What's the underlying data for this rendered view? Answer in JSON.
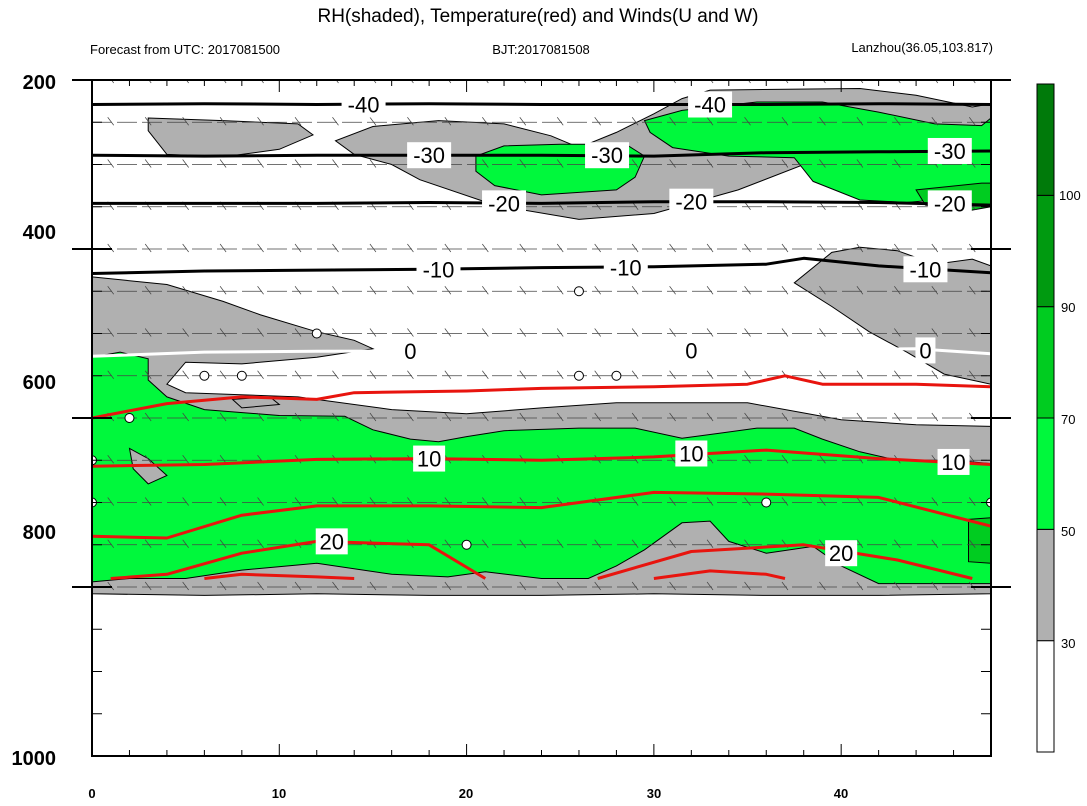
{
  "header": {
    "title": "RH(shaded), Temperature(red) and Winds(U and W)",
    "left_subtitle": "Forecast from UTC: 2017081500",
    "center_subtitle": "BJT:2017081508",
    "right_subtitle": "Lanzhou(36.05,103.817)"
  },
  "chart_data": {
    "type": "heatmap",
    "title": "RH(shaded), Temperature(red) and Winds(U and W)",
    "x_ticks": [
      "0",
      "10",
      "20",
      "30",
      "40"
    ],
    "x_range": [
      0,
      48
    ],
    "y_ticks": [
      "200",
      "400",
      "600",
      "800",
      "1000"
    ],
    "y_range": [
      200,
      1000
    ],
    "y_inverted": true,
    "colorbar": {
      "labels": [
        "30",
        "50",
        "70",
        "90",
        "100"
      ],
      "levels": [
        {
          "min": 0,
          "max": 30,
          "color": "#ffffff"
        },
        {
          "min": 30,
          "max": 50,
          "color": "#b0b0b0"
        },
        {
          "min": 50,
          "max": 70,
          "color": "#00f83c"
        },
        {
          "min": 70,
          "max": 90,
          "color": "#00cc20"
        },
        {
          "min": 90,
          "max": 100,
          "color": "#009a10"
        },
        {
          "min": 100,
          "max": 110,
          "color": "#007a0a"
        }
      ]
    },
    "rh_regions": [
      {
        "level": 30,
        "points": [
          [
            3,
            245
          ],
          [
            7,
            248
          ],
          [
            11,
            252
          ],
          [
            11.8,
            265
          ],
          [
            10,
            282
          ],
          [
            7,
            291
          ],
          [
            4,
            288
          ],
          [
            3,
            260
          ]
        ]
      },
      {
        "level": 30,
        "points": [
          [
            15,
            255
          ],
          [
            18.5,
            248
          ],
          [
            22,
            252
          ],
          [
            24.5,
            266
          ],
          [
            26,
            280
          ],
          [
            28,
            262
          ],
          [
            30,
            240
          ],
          [
            31.5,
            222
          ],
          [
            33,
            212
          ],
          [
            41,
            210
          ],
          [
            44,
            218
          ],
          [
            47,
            232
          ],
          [
            48,
            228
          ],
          [
            48,
            322
          ],
          [
            47,
            325
          ],
          [
            42,
            315
          ],
          [
            38,
            300
          ],
          [
            34.5,
            330
          ],
          [
            30,
            358
          ],
          [
            26,
            365
          ],
          [
            21.5,
            348
          ],
          [
            17.5,
            318
          ],
          [
            16,
            300
          ],
          [
            14,
            288
          ],
          [
            13,
            272
          ]
        ]
      },
      {
        "level": 50,
        "points": [
          [
            20.5,
            290
          ],
          [
            22,
            278
          ],
          [
            25,
            276
          ],
          [
            28.5,
            276
          ],
          [
            29.5,
            290
          ],
          [
            29,
            315
          ],
          [
            28,
            330
          ],
          [
            24,
            336
          ],
          [
            21.5,
            325
          ],
          [
            20.5,
            308
          ]
        ]
      },
      {
        "level": 50,
        "points": [
          [
            29.5,
            248
          ],
          [
            31.5,
            236
          ],
          [
            35.5,
            226
          ],
          [
            39,
            226
          ],
          [
            42,
            238
          ],
          [
            45,
            252
          ],
          [
            47.5,
            254
          ],
          [
            48,
            245
          ],
          [
            48,
            330
          ],
          [
            46,
            340
          ],
          [
            43.5,
            345
          ],
          [
            41,
            342
          ],
          [
            38.5,
            320
          ],
          [
            37.5,
            292
          ],
          [
            34,
            290
          ],
          [
            31,
            280
          ],
          [
            29.8,
            262
          ]
        ]
      },
      {
        "level": 70,
        "points": [
          [
            44,
            330
          ],
          [
            47.5,
            322
          ],
          [
            48,
            322
          ],
          [
            48,
            350
          ],
          [
            46.5,
            356
          ],
          [
            44.5,
            348
          ]
        ]
      },
      {
        "level": 30,
        "points": [
          [
            0,
            433
          ],
          [
            4,
            442
          ],
          [
            7,
            462
          ],
          [
            9,
            478
          ],
          [
            12,
            498
          ],
          [
            14,
            508
          ],
          [
            15,
            518
          ],
          [
            12,
            528
          ],
          [
            8,
            536
          ],
          [
            5,
            534
          ],
          [
            4,
            560
          ],
          [
            5,
            570
          ],
          [
            11,
            575
          ],
          [
            16,
            590
          ],
          [
            20,
            595
          ],
          [
            24,
            588
          ],
          [
            28,
            582
          ],
          [
            35,
            582
          ],
          [
            40,
            602
          ],
          [
            44,
            608
          ],
          [
            48,
            610
          ],
          [
            48,
            808
          ],
          [
            42,
            810
          ],
          [
            36,
            810
          ],
          [
            30,
            808
          ],
          [
            24,
            810
          ],
          [
            18,
            810
          ],
          [
            12,
            808
          ],
          [
            6,
            810
          ],
          [
            0,
            808
          ]
        ]
      },
      {
        "level": 30,
        "points": [
          [
            37.5,
            440
          ],
          [
            39.5,
            468
          ],
          [
            41.5,
            498
          ],
          [
            43.5,
            522
          ],
          [
            45.5,
            548
          ],
          [
            48,
            560
          ],
          [
            48,
            420
          ],
          [
            47,
            412
          ],
          [
            45,
            418
          ],
          [
            43,
            402
          ],
          [
            41,
            398
          ],
          [
            39.5,
            404
          ]
        ]
      },
      {
        "level": 50,
        "points": [
          [
            0,
            528
          ],
          [
            1.5,
            522
          ],
          [
            3,
            530
          ],
          [
            3,
            555
          ],
          [
            4,
            575
          ],
          [
            6,
            590
          ],
          [
            10,
            597
          ],
          [
            13.5,
            598
          ],
          [
            15,
            614
          ],
          [
            17,
            625
          ],
          [
            18.5,
            628
          ],
          [
            20,
            622
          ],
          [
            22,
            615
          ],
          [
            26,
            612
          ],
          [
            29,
            612
          ],
          [
            31.5,
            624
          ],
          [
            33.5,
            618
          ],
          [
            35.5,
            612
          ],
          [
            37.5,
            612
          ],
          [
            39,
            625
          ],
          [
            41,
            640
          ],
          [
            43,
            650
          ],
          [
            46,
            650
          ],
          [
            48,
            654
          ],
          [
            48,
            796
          ],
          [
            42,
            796
          ],
          [
            40,
            775
          ],
          [
            38.5,
            752
          ],
          [
            36,
            760
          ],
          [
            34,
            746
          ],
          [
            33,
            722
          ],
          [
            31.5,
            724
          ],
          [
            29.5,
            756
          ],
          [
            28,
            775
          ],
          [
            26.5,
            790
          ],
          [
            24,
            790
          ],
          [
            21,
            782
          ],
          [
            19,
            788
          ],
          [
            16,
            785
          ],
          [
            12,
            772
          ],
          [
            8,
            780
          ],
          [
            5,
            790
          ],
          [
            2,
            790
          ],
          [
            0,
            794
          ]
        ]
      },
      {
        "level": 70,
        "points": [
          [
            46.8,
            720
          ],
          [
            48,
            718
          ],
          [
            48,
            772
          ],
          [
            46.8,
            770
          ]
        ]
      },
      {
        "level": 30,
        "points": [
          [
            7.5,
            578
          ],
          [
            9.5,
            575
          ],
          [
            10,
            584
          ],
          [
            8,
            588
          ]
        ]
      },
      {
        "level": 30,
        "points": [
          [
            2,
            636
          ],
          [
            3,
            648
          ],
          [
            4,
            668
          ],
          [
            3,
            678
          ],
          [
            2.2,
            660
          ]
        ]
      }
    ],
    "temperature_contours": [
      {
        "value": -40,
        "points": [
          [
            0,
            229
          ],
          [
            6,
            228
          ],
          [
            12,
            229
          ],
          [
            18,
            228
          ],
          [
            24,
            229
          ],
          [
            30,
            229
          ],
          [
            36,
            229
          ],
          [
            42,
            228
          ],
          [
            48,
            229
          ]
        ]
      },
      {
        "value": -30,
        "points": [
          [
            0,
            289
          ],
          [
            6,
            290
          ],
          [
            12,
            289
          ],
          [
            18,
            289
          ],
          [
            24,
            289
          ],
          [
            30,
            290
          ],
          [
            36,
            286
          ],
          [
            42,
            285
          ],
          [
            48,
            284
          ]
        ]
      },
      {
        "value": -20,
        "points": [
          [
            0,
            346
          ],
          [
            6,
            346
          ],
          [
            12,
            346
          ],
          [
            18,
            345
          ],
          [
            24,
            346
          ],
          [
            30,
            344
          ],
          [
            36,
            344
          ],
          [
            42,
            345
          ],
          [
            48,
            348
          ]
        ]
      },
      {
        "value": -10,
        "points": [
          [
            0,
            429
          ],
          [
            6,
            426
          ],
          [
            12,
            425
          ],
          [
            18,
            424
          ],
          [
            24,
            422
          ],
          [
            30,
            421
          ],
          [
            36,
            418
          ],
          [
            38,
            411
          ],
          [
            42,
            420
          ],
          [
            48,
            428
          ]
        ]
      },
      {
        "value": 0,
        "points": [
          [
            0,
            527
          ],
          [
            6,
            522
          ],
          [
            12,
            521
          ],
          [
            36,
            520
          ],
          [
            44,
            518
          ],
          [
            48,
            524
          ]
        ]
      },
      {
        "value": 10,
        "points": [
          [
            0,
            600
          ],
          [
            4,
            583
          ],
          [
            8,
            575
          ],
          [
            12,
            578
          ],
          [
            14,
            570
          ],
          [
            20,
            568
          ],
          [
            24,
            565
          ],
          [
            30,
            563
          ],
          [
            35,
            560
          ],
          [
            37,
            550
          ],
          [
            39,
            560
          ],
          [
            44,
            560
          ],
          [
            48,
            563
          ]
        ]
      },
      {
        "value": 10,
        "points": [
          [
            0,
            657
          ],
          [
            6,
            655
          ],
          [
            12,
            649
          ],
          [
            18,
            648
          ],
          [
            24,
            650
          ],
          [
            30,
            646
          ],
          [
            36,
            638
          ],
          [
            42,
            648
          ],
          [
            48,
            655
          ]
        ]
      },
      {
        "value": 20,
        "points": [
          [
            0,
            740
          ],
          [
            4,
            742
          ],
          [
            8,
            715
          ],
          [
            12,
            704
          ],
          [
            18,
            704
          ],
          [
            24,
            706
          ],
          [
            30,
            688
          ],
          [
            36,
            690
          ],
          [
            42,
            694
          ],
          [
            48,
            728
          ]
        ]
      },
      {
        "value": 20,
        "points": [
          [
            1,
            790
          ],
          [
            4,
            785
          ],
          [
            8,
            760
          ],
          [
            12,
            746
          ],
          [
            18,
            750
          ],
          [
            21,
            790
          ]
        ]
      },
      {
        "value": 20,
        "points": [
          [
            27,
            790
          ],
          [
            32,
            758
          ],
          [
            38,
            750
          ],
          [
            43,
            768
          ],
          [
            47,
            790
          ]
        ]
      },
      {
        "value": 20,
        "points": [
          [
            6,
            790
          ],
          [
            8,
            785
          ],
          [
            12,
            788
          ],
          [
            14,
            790
          ]
        ]
      },
      {
        "value": 20,
        "points": [
          [
            30,
            790
          ],
          [
            33,
            781
          ],
          [
            36,
            785
          ],
          [
            37,
            790
          ]
        ]
      }
    ],
    "temperature_labels": [
      {
        "text": "-40",
        "x": 14.5,
        "y": 229
      },
      {
        "text": "-40",
        "x": 33,
        "y": 229
      },
      {
        "text": "-30",
        "x": 18,
        "y": 289
      },
      {
        "text": "-30",
        "x": 27.5,
        "y": 289
      },
      {
        "text": "-30",
        "x": 45.8,
        "y": 284
      },
      {
        "text": "-20",
        "x": 22,
        "y": 346
      },
      {
        "text": "-20",
        "x": 32,
        "y": 344
      },
      {
        "text": "-20",
        "x": 45.8,
        "y": 346
      },
      {
        "text": "-10",
        "x": 18.5,
        "y": 424
      },
      {
        "text": "-10",
        "x": 28.5,
        "y": 422
      },
      {
        "text": "-10",
        "x": 44.5,
        "y": 424
      },
      {
        "text": "0",
        "x": 17,
        "y": 521
      },
      {
        "text": "0",
        "x": 32,
        "y": 520
      },
      {
        "text": "0",
        "x": 44.5,
        "y": 520
      },
      {
        "text": "10",
        "x": 18,
        "y": 648
      },
      {
        "text": "10",
        "x": 32,
        "y": 642
      },
      {
        "text": "10",
        "x": 46,
        "y": 652
      },
      {
        "text": "20",
        "x": 12.8,
        "y": 746
      },
      {
        "text": "20",
        "x": 40,
        "y": 760
      }
    ],
    "calm_circles": [
      [
        12,
        500
      ],
      [
        6,
        550
      ],
      [
        8,
        550
      ],
      [
        2,
        600
      ],
      [
        26,
        450
      ],
      [
        26,
        550
      ],
      [
        28,
        550
      ],
      [
        0,
        650
      ],
      [
        0,
        700
      ],
      [
        20,
        750
      ],
      [
        36,
        700
      ],
      [
        48,
        700
      ]
    ]
  }
}
